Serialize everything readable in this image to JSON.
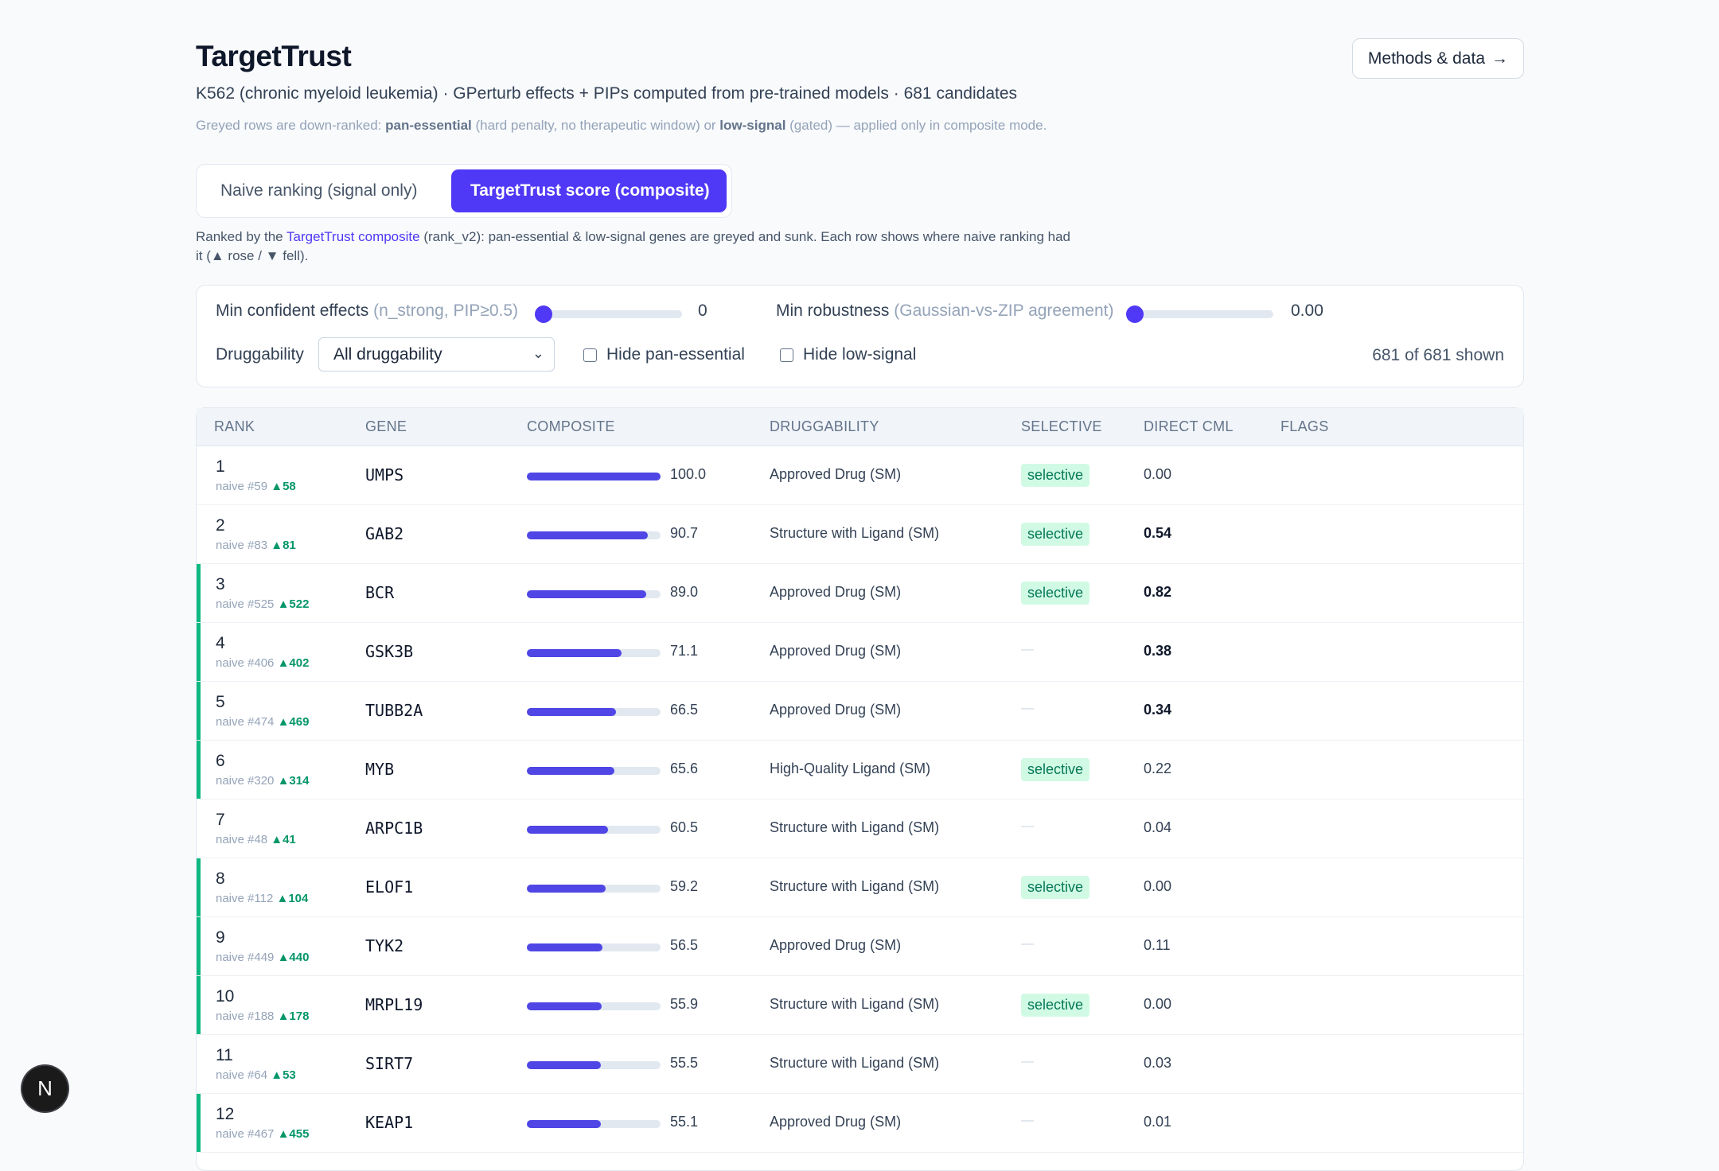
{
  "header": {
    "title": "TargetTrust",
    "subtitle": "K562 (chronic myeloid leukemia) · GPerturb effects + PIPs computed from pre-trained models · 681 candidates",
    "note_prefix": "Greyed rows are down-ranked: ",
    "note_pan": "pan-essential",
    "note_mid1": " (hard penalty, no therapeutic window) or ",
    "note_low": "low-signal",
    "note_suffix": " (gated) — applied only in composite mode.",
    "methods_label": "Methods & data",
    "methods_arrow": "→"
  },
  "toggle": {
    "naive": "Naive ranking (signal only)",
    "composite": "TargetTrust score (composite)"
  },
  "explain": {
    "prefix": "Ranked by the ",
    "highlight": "TargetTrust composite",
    "suffix": " (rank_v2): pan-essential & low-signal genes are greyed and sunk. Each row shows where naive ranking had it (▲ rose / ▼ fell)."
  },
  "filters": {
    "min_effects_label": "Min confident effects",
    "min_effects_hint": "(n_strong, PIP≥0.5)",
    "min_effects_value": "0",
    "min_robust_label": "Min robustness",
    "min_robust_hint": "(Gaussian-vs-ZIP agreement)",
    "min_robust_value": "0.00",
    "druggability_label": "Druggability",
    "druggability_selected": "All druggability",
    "chevron": "⌄",
    "hide_pan": "Hide pan-essential",
    "hide_low": "Hide low-signal",
    "shown_count": "681 of 681 shown"
  },
  "table": {
    "headers": [
      "Rank",
      "Gene",
      "Composite",
      "Druggability",
      "Selective",
      "Direct CML",
      "Flags"
    ],
    "rows": [
      {
        "rank": "1",
        "naive": "naive #59",
        "delta": "▲58",
        "gene": "UMPS",
        "score": "100.0",
        "pct": 100,
        "drug": "Approved Drug (SM)",
        "selective": "selective",
        "cml": "0.00",
        "cml_bold": false,
        "hl": false
      },
      {
        "rank": "2",
        "naive": "naive #83",
        "delta": "▲81",
        "gene": "GAB2",
        "score": "90.7",
        "pct": 90.7,
        "drug": "Structure with Ligand (SM)",
        "selective": "selective",
        "cml": "0.54",
        "cml_bold": true,
        "hl": false
      },
      {
        "rank": "3",
        "naive": "naive #525",
        "delta": "▲522",
        "gene": "BCR",
        "score": "89.0",
        "pct": 89.0,
        "drug": "Approved Drug (SM)",
        "selective": "selective",
        "cml": "0.82",
        "cml_bold": true,
        "hl": true
      },
      {
        "rank": "4",
        "naive": "naive #406",
        "delta": "▲402",
        "gene": "GSK3B",
        "score": "71.1",
        "pct": 71.1,
        "drug": "Approved Drug (SM)",
        "selective": "—",
        "cml": "0.38",
        "cml_bold": true,
        "hl": true
      },
      {
        "rank": "5",
        "naive": "naive #474",
        "delta": "▲469",
        "gene": "TUBB2A",
        "score": "66.5",
        "pct": 66.5,
        "drug": "Approved Drug (SM)",
        "selective": "—",
        "cml": "0.34",
        "cml_bold": true,
        "hl": true
      },
      {
        "rank": "6",
        "naive": "naive #320",
        "delta": "▲314",
        "gene": "MYB",
        "score": "65.6",
        "pct": 65.6,
        "drug": "High-Quality Ligand (SM)",
        "selective": "selective",
        "cml": "0.22",
        "cml_bold": false,
        "hl": true
      },
      {
        "rank": "7",
        "naive": "naive #48",
        "delta": "▲41",
        "gene": "ARPC1B",
        "score": "60.5",
        "pct": 60.5,
        "drug": "Structure with Ligand (SM)",
        "selective": "—",
        "cml": "0.04",
        "cml_bold": false,
        "hl": false
      },
      {
        "rank": "8",
        "naive": "naive #112",
        "delta": "▲104",
        "gene": "ELOF1",
        "score": "59.2",
        "pct": 59.2,
        "drug": "Structure with Ligand (SM)",
        "selective": "selective",
        "cml": "0.00",
        "cml_bold": false,
        "hl": true
      },
      {
        "rank": "9",
        "naive": "naive #449",
        "delta": "▲440",
        "gene": "TYK2",
        "score": "56.5",
        "pct": 56.5,
        "drug": "Approved Drug (SM)",
        "selective": "—",
        "cml": "0.11",
        "cml_bold": false,
        "hl": true
      },
      {
        "rank": "10",
        "naive": "naive #188",
        "delta": "▲178",
        "gene": "MRPL19",
        "score": "55.9",
        "pct": 55.9,
        "drug": "Structure with Ligand (SM)",
        "selective": "selective",
        "cml": "0.00",
        "cml_bold": false,
        "hl": true
      },
      {
        "rank": "11",
        "naive": "naive #64",
        "delta": "▲53",
        "gene": "SIRT7",
        "score": "55.5",
        "pct": 55.5,
        "drug": "Structure with Ligand (SM)",
        "selective": "—",
        "cml": "0.03",
        "cml_bold": false,
        "hl": false
      },
      {
        "rank": "12",
        "naive": "naive #467",
        "delta": "▲455",
        "gene": "KEAP1",
        "score": "55.1",
        "pct": 55.1,
        "drug": "Approved Drug (SM)",
        "selective": "—",
        "cml": "0.01",
        "cml_bold": false,
        "hl": true
      }
    ]
  },
  "fab": {
    "label": "N",
    "icon": "next-logo-icon"
  }
}
